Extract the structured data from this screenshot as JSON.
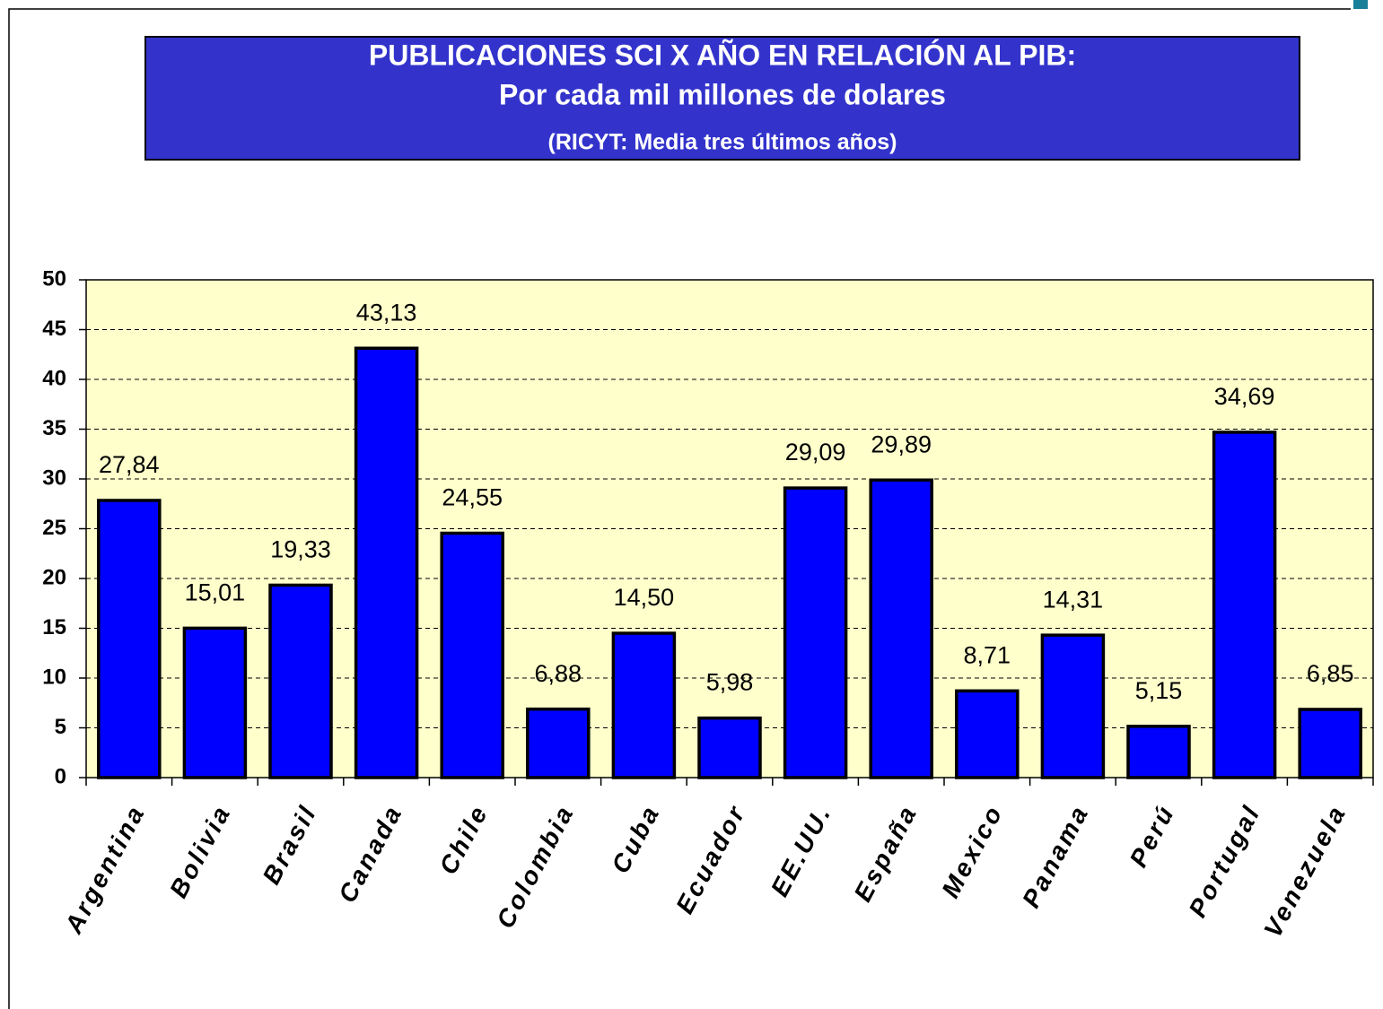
{
  "chart_data": {
    "type": "bar",
    "title": "PUBLICACIONES SCI X AÑO EN RELACIÓN AL PIB:",
    "subtitle": "Por cada mil millones de dolares",
    "note": "(RICYT: Media tres últimos años)",
    "categories": [
      "Argentina",
      "Bolivia",
      "Brasil",
      "Canada",
      "Chile",
      "Colombia",
      "Cuba",
      "Ecuador",
      "EE.UU.",
      "España",
      "Mexico",
      "Panama",
      "Perú",
      "Portugal",
      "Venezuela"
    ],
    "values": [
      27.84,
      15.01,
      19.33,
      43.13,
      24.55,
      6.88,
      14.5,
      5.98,
      29.09,
      29.89,
      8.71,
      14.31,
      5.15,
      34.69,
      6.85
    ],
    "value_labels": [
      "27,84",
      "15,01",
      "19,33",
      "43,13",
      "24,55",
      "6,88",
      "14,50",
      "5,98",
      "29,09",
      "29,89",
      "8,71",
      "14,31",
      "5,15",
      "34,69",
      "6,85"
    ],
    "color": "#0000ff",
    "ylim": [
      0,
      50
    ],
    "yticks": [
      0,
      5,
      10,
      15,
      20,
      25,
      30,
      35,
      40,
      45,
      50
    ],
    "grid": true
  }
}
